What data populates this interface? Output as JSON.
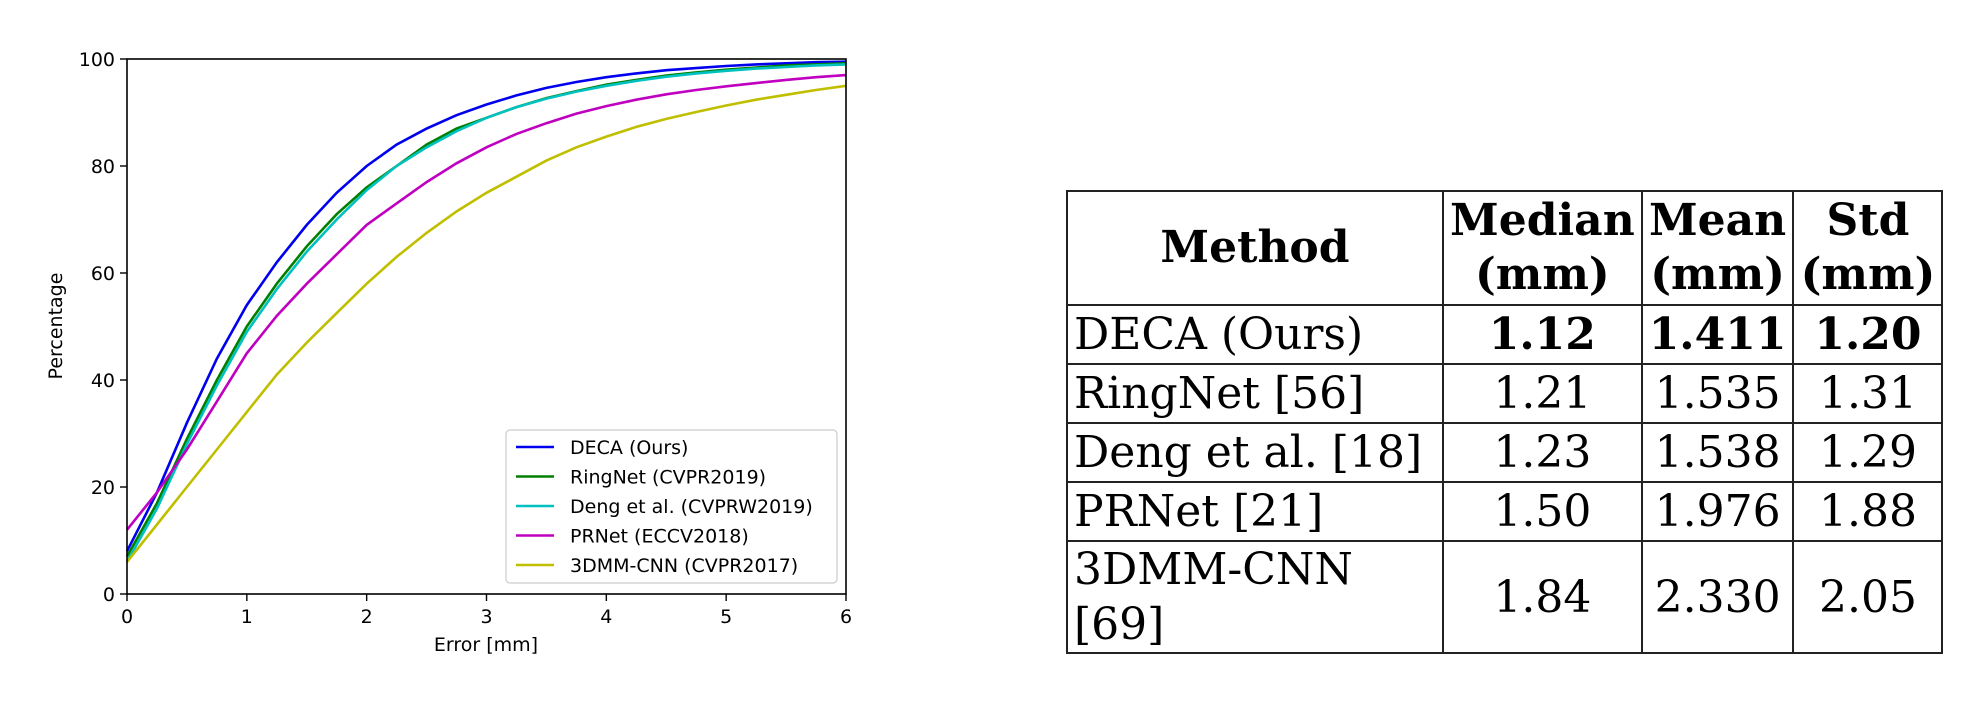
{
  "chart_data": {
    "type": "line",
    "xlabel": "Error [mm]",
    "ylabel": "Percentage",
    "xlim": [
      0,
      6
    ],
    "ylim": [
      0,
      100
    ],
    "xticks": [
      "0",
      "1",
      "2",
      "3",
      "4",
      "5",
      "6"
    ],
    "yticks": [
      "0",
      "20",
      "40",
      "60",
      "80",
      "100"
    ],
    "grid": false,
    "legend_position": "lower-right",
    "x": [
      0,
      0.25,
      0.5,
      0.75,
      1,
      1.25,
      1.5,
      1.75,
      2,
      2.25,
      2.5,
      2.75,
      3,
      3.25,
      3.5,
      3.75,
      4,
      4.25,
      4.5,
      4.75,
      5,
      5.25,
      5.5,
      5.75,
      6
    ],
    "series": [
      {
        "name": "DECA (Ours)",
        "color": "#0000ee",
        "values": [
          8,
          19,
          32,
          44,
          54,
          62,
          69,
          75,
          80,
          84,
          87,
          89.5,
          91.5,
          93.2,
          94.6,
          95.7,
          96.6,
          97.3,
          97.9,
          98.3,
          98.7,
          99.0,
          99.2,
          99.4,
          99.5
        ]
      },
      {
        "name": "RingNet (CVPR2019)",
        "color": "#008000",
        "values": [
          7,
          17,
          29,
          40,
          50,
          58,
          65,
          71,
          76,
          80,
          84,
          87,
          89,
          91,
          92.7,
          94,
          95.2,
          96.1,
          96.9,
          97.5,
          98,
          98.4,
          98.8,
          99.0,
          99.2
        ]
      },
      {
        "name": "Deng et al. (CVPRW2019)",
        "color": "#00c0c0",
        "values": [
          6,
          16,
          28,
          39,
          49,
          57,
          64,
          70,
          75.5,
          80,
          83.5,
          86.5,
          89,
          91,
          92.6,
          93.9,
          95,
          95.9,
          96.7,
          97.3,
          97.8,
          98.2,
          98.5,
          98.8,
          99.0
        ]
      },
      {
        "name": "PRNet (ECCV2018)",
        "color": "#c000c0",
        "values": [
          12,
          19,
          27,
          36,
          45,
          52,
          58,
          63.5,
          69,
          73,
          77,
          80.5,
          83.5,
          86,
          88,
          89.8,
          91.2,
          92.4,
          93.4,
          94.2,
          94.9,
          95.5,
          96.1,
          96.6,
          97.0
        ]
      },
      {
        "name": "3DMM-CNN (CVPR2017)",
        "color": "#bfbf00",
        "values": [
          6,
          13,
          20,
          27,
          34,
          41,
          47,
          52.5,
          58,
          63,
          67.5,
          71.5,
          75,
          78,
          81,
          83.5,
          85.5,
          87.3,
          88.8,
          90.1,
          91.3,
          92.4,
          93.3,
          94.2,
          95.0
        ]
      }
    ]
  },
  "table": {
    "headers": [
      {
        "line1": "Method",
        "line2": ""
      },
      {
        "line1": "Median",
        "line2": "(mm)"
      },
      {
        "line1": "Mean",
        "line2": "(mm)"
      },
      {
        "line1": "Std",
        "line2": "(mm)"
      }
    ],
    "rows": [
      {
        "method": "DECA (Ours)",
        "median": "1.12",
        "mean": "1.411",
        "std": "1.20",
        "best": true
      },
      {
        "method": "RingNet [56]",
        "median": "1.21",
        "mean": "1.535",
        "std": "1.31",
        "best": false
      },
      {
        "method": "Deng et al. [18]",
        "median": "1.23",
        "mean": "1.538",
        "std": "1.29",
        "best": false
      },
      {
        "method": "PRNet [21]",
        "median": "1.50",
        "mean": "1.976",
        "std": "1.88",
        "best": false
      },
      {
        "method": "3DMM-CNN [69]",
        "median": "1.84",
        "mean": "2.330",
        "std": "2.05",
        "best": false
      }
    ]
  }
}
